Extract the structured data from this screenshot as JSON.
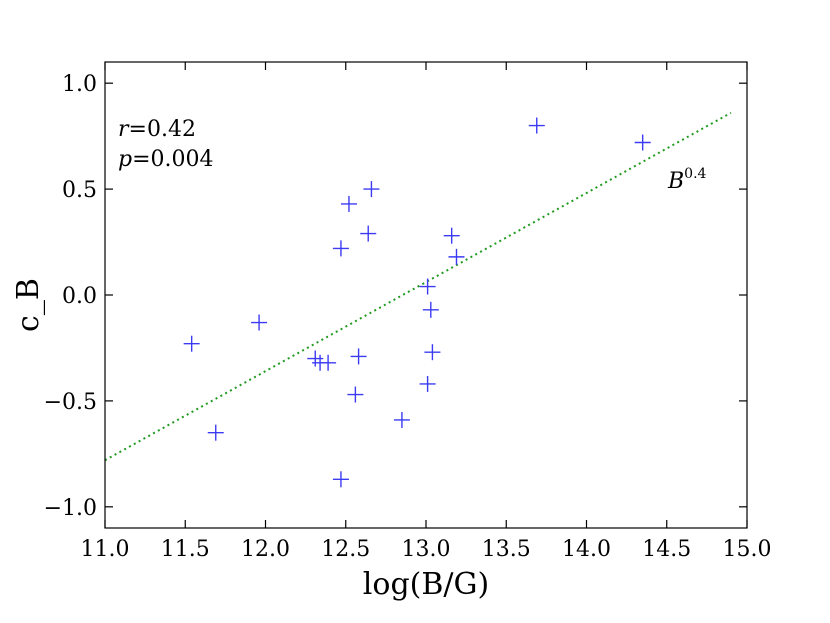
{
  "chart_data": {
    "type": "scatter",
    "title": "",
    "xlabel": "log(B/G)",
    "ylabel": "c_B",
    "xlim": [
      11.0,
      15.0
    ],
    "ylim": [
      -1.1,
      1.1
    ],
    "xticks": [
      "11.0",
      "11.5",
      "12.0",
      "12.5",
      "13.0",
      "13.5",
      "14.0",
      "14.5",
      "15.0"
    ],
    "yticks": [
      "1.0",
      "0.5",
      "0.0",
      "−0.5",
      "−1.0"
    ],
    "series": [
      {
        "name": "data",
        "marker": "+",
        "color": "#3b3bf5",
        "points": [
          {
            "x": 11.54,
            "y": -0.23
          },
          {
            "x": 11.69,
            "y": -0.65
          },
          {
            "x": 11.96,
            "y": -0.13
          },
          {
            "x": 12.31,
            "y": -0.3
          },
          {
            "x": 12.34,
            "y": -0.32
          },
          {
            "x": 12.39,
            "y": -0.32
          },
          {
            "x": 12.47,
            "y": 0.22
          },
          {
            "x": 12.47,
            "y": -0.87
          },
          {
            "x": 12.52,
            "y": 0.43
          },
          {
            "x": 12.56,
            "y": -0.47
          },
          {
            "x": 12.58,
            "y": -0.29
          },
          {
            "x": 12.64,
            "y": 0.29
          },
          {
            "x": 12.66,
            "y": 0.5
          },
          {
            "x": 12.85,
            "y": -0.59
          },
          {
            "x": 13.01,
            "y": 0.04
          },
          {
            "x": 13.01,
            "y": -0.42
          },
          {
            "x": 13.03,
            "y": -0.07
          },
          {
            "x": 13.04,
            "y": -0.27
          },
          {
            "x": 13.16,
            "y": 0.28
          },
          {
            "x": 13.19,
            "y": 0.18
          },
          {
            "x": 13.69,
            "y": 0.8
          },
          {
            "x": 14.35,
            "y": 0.72
          }
        ]
      },
      {
        "name": "fit",
        "type": "line",
        "style": "dotted",
        "color": "#1f9a1f",
        "x": [
          11.0,
          14.9
        ],
        "y": [
          -0.78,
          0.86
        ]
      }
    ],
    "annotations": {
      "r_label": "r",
      "r_value": "=0.42",
      "p_label": "p",
      "p_value": "=0.004",
      "fit_label_base": "B",
      "fit_label_exp": "0.4"
    }
  }
}
